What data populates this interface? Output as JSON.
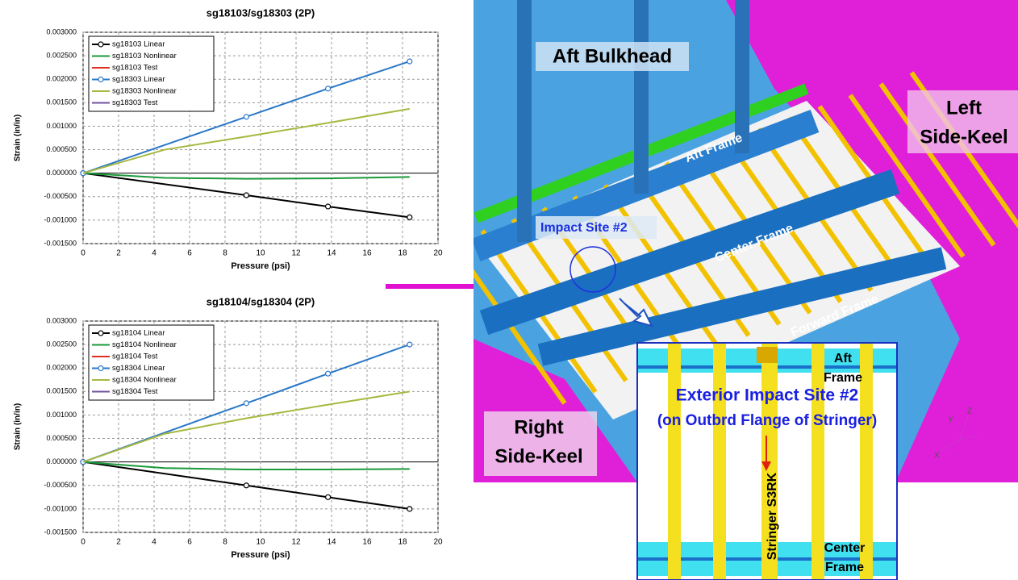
{
  "chart_data": [
    {
      "type": "line",
      "title": "sg18103/sg18303 (2P)",
      "x_label": "Pressure (psi)",
      "y_label": "Strain (in/in)",
      "xlim": [
        0,
        20
      ],
      "xticks": [
        0,
        2,
        4,
        6,
        8,
        10,
        12,
        14,
        16,
        18,
        20
      ],
      "ylim": [
        -0.0015,
        0.003
      ],
      "yticks": [
        {
          "value": -0.0015,
          "label": "-0.001500"
        },
        {
          "value": -0.001,
          "label": "-0.001000"
        },
        {
          "value": -0.0005,
          "label": "-0.000500"
        },
        {
          "value": 0,
          "label": "0.000000"
        },
        {
          "value": 0.0005,
          "label": "0.000500"
        },
        {
          "value": 0.001,
          "label": "0.001000"
        },
        {
          "value": 0.0015,
          "label": "0.001500"
        },
        {
          "value": 0.002,
          "label": "0.002000"
        },
        {
          "value": 0.0025,
          "label": "0.002500"
        },
        {
          "value": 0.003,
          "label": "0.003000"
        }
      ],
      "grid": true,
      "series": [
        {
          "name": "sg18103 Linear",
          "color": "#000000",
          "markers": true,
          "x": [
            0,
            9.2,
            13.8,
            18.4
          ],
          "values": [
            0,
            -0.00047,
            -0.00071,
            -0.00094
          ]
        },
        {
          "name": "sg18103 Nonlinear",
          "color": "#1a9a3a",
          "markers": false,
          "x": [
            0,
            4.6,
            9.2,
            13.8,
            18.4
          ],
          "values": [
            0,
            -0.0001,
            -0.00012,
            -0.00011,
            -8e-05
          ]
        },
        {
          "name": "sg18103 Test",
          "color": "#e03020",
          "markers": false,
          "x": [],
          "values": []
        },
        {
          "name": "sg18303 Linear",
          "color": "#2a78c8",
          "markers": true,
          "x": [
            0,
            9.2,
            13.8,
            18.4
          ],
          "values": [
            0,
            0.0012,
            0.0018,
            0.00238
          ]
        },
        {
          "name": "sg18303 Nonlinear",
          "color": "#a8b840",
          "markers": false,
          "x": [
            0,
            4.6,
            9.2,
            13.8,
            18.4
          ],
          "values": [
            0,
            0.0005,
            0.00078,
            0.00107,
            0.00137
          ]
        },
        {
          "name": "sg18303 Test",
          "color": "#7050a0",
          "markers": false,
          "x": [],
          "values": []
        }
      ]
    },
    {
      "type": "line",
      "title": "sg18104/sg18304 (2P)",
      "x_label": "Pressure (psi)",
      "y_label": "Strain (in/in)",
      "xlim": [
        0,
        20
      ],
      "xticks": [
        0,
        2,
        4,
        6,
        8,
        10,
        12,
        14,
        16,
        18,
        20
      ],
      "ylim": [
        -0.0015,
        0.003
      ],
      "yticks": [
        {
          "value": -0.0015,
          "label": "-0.001500"
        },
        {
          "value": -0.001,
          "label": "-0.001000"
        },
        {
          "value": -0.0005,
          "label": "-0.000500"
        },
        {
          "value": 0,
          "label": "0.000000"
        },
        {
          "value": 0.0005,
          "label": "0.000500"
        },
        {
          "value": 0.001,
          "label": "0.001000"
        },
        {
          "value": 0.0015,
          "label": "0.001500"
        },
        {
          "value": 0.002,
          "label": "0.002000"
        },
        {
          "value": 0.0025,
          "label": "0.002500"
        },
        {
          "value": 0.003,
          "label": "0.003000"
        }
      ],
      "grid": true,
      "series": [
        {
          "name": "sg18104 Linear",
          "color": "#000000",
          "markers": true,
          "x": [
            0,
            9.2,
            13.8,
            18.4
          ],
          "values": [
            0,
            -0.0005,
            -0.00075,
            -0.001
          ]
        },
        {
          "name": "sg18104 Nonlinear",
          "color": "#1a9a3a",
          "markers": false,
          "x": [
            0,
            4.6,
            9.2,
            13.8,
            18.4
          ],
          "values": [
            0,
            -0.00013,
            -0.00016,
            -0.00016,
            -0.00015
          ]
        },
        {
          "name": "sg18104 Test",
          "color": "#e03020",
          "markers": false,
          "x": [],
          "values": []
        },
        {
          "name": "sg18304 Linear",
          "color": "#2a78c8",
          "markers": true,
          "x": [
            0,
            9.2,
            13.8,
            18.4
          ],
          "values": [
            0,
            0.00125,
            0.00188,
            0.0025
          ]
        },
        {
          "name": "sg18304 Nonlinear",
          "color": "#a8b840",
          "markers": false,
          "x": [
            0,
            4.6,
            9.2,
            13.8,
            18.4
          ],
          "values": [
            0,
            0.0006,
            0.00093,
            0.00122,
            0.0015
          ]
        },
        {
          "name": "sg18304 Test",
          "color": "#7050a0",
          "markers": false,
          "x": [],
          "values": []
        }
      ]
    }
  ],
  "image_labels": {
    "aft_bulkhead": "Aft Bulkhead",
    "left_side_keel": [
      "Left",
      "Side-Keel"
    ],
    "aft_frame": "Aft Frame",
    "impact_site": "Impact Site #2",
    "center_frame": "Center Frame",
    "forward_frame": "Forward Frame",
    "right_side_keel": [
      "Right",
      "Side-Keel"
    ],
    "inset": {
      "aft_frame": [
        "Aft",
        "Frame"
      ],
      "title": [
        "Exterior Impact Site #2",
        "(on Outbrd Flange of Stringer)"
      ],
      "stringer": "Stringer S3RK",
      "center_frame": [
        "Center",
        "Frame"
      ]
    },
    "triad": [
      "Y",
      "Z",
      "X"
    ]
  }
}
